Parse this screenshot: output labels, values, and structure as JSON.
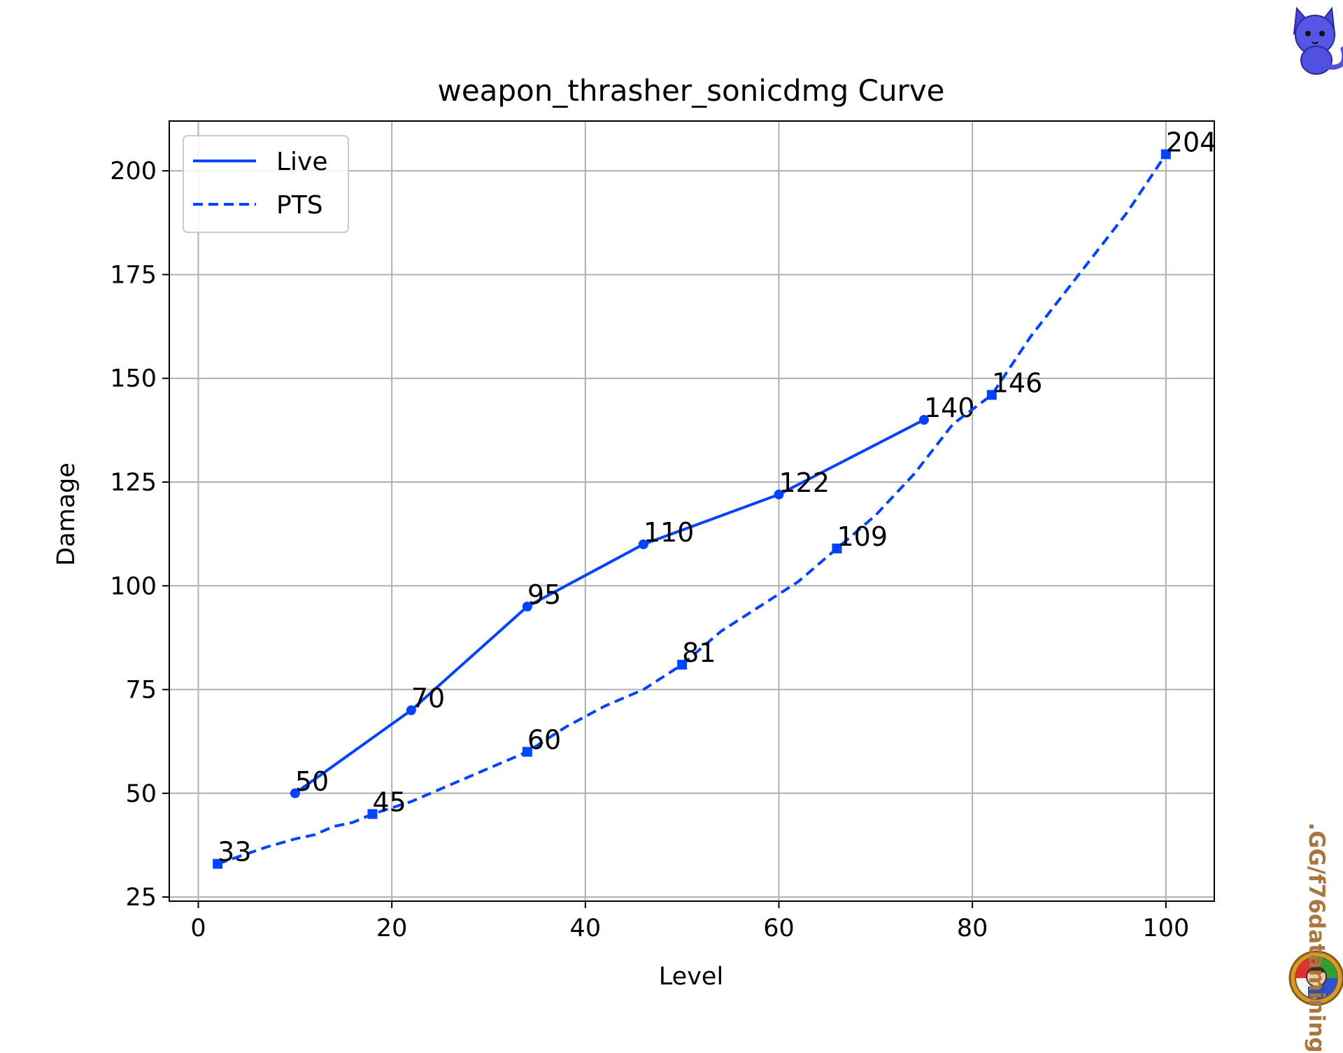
{
  "watermark": {
    "text": ".GG/f76datamining",
    "color": "#a8763e"
  },
  "logos": {
    "top_right": "cat-mascot-logo",
    "bottom_right": "vault-boy-gear-logo"
  },
  "chart_data": {
    "type": "line",
    "title": "weapon_thrasher_sonicdmg Curve",
    "xlabel": "Level",
    "ylabel": "Damage",
    "xlim": [
      -3,
      105
    ],
    "ylim": [
      24,
      212
    ],
    "xticks": [
      0,
      20,
      40,
      60,
      80,
      100
    ],
    "yticks": [
      25,
      50,
      75,
      100,
      125,
      150,
      175,
      200
    ],
    "grid": true,
    "legend_position": "upper-left",
    "color": "#0044ff",
    "series": [
      {
        "name": "Live",
        "style": "solid",
        "marker": "circle",
        "x": [
          10,
          22,
          34,
          46,
          60,
          75
        ],
        "y": [
          50,
          70,
          95,
          110,
          122,
          140
        ],
        "labels": [
          "50",
          "70",
          "95",
          "110",
          "122",
          "140"
        ]
      },
      {
        "name": "PTS",
        "style": "dashed",
        "marker": "square",
        "x": [
          2,
          7,
          10,
          12,
          14,
          16,
          18,
          22,
          26,
          30,
          34,
          38,
          42,
          46,
          50,
          54,
          58,
          62,
          66,
          70,
          74,
          78,
          82,
          86,
          90,
          92,
          96,
          100
        ],
        "y": [
          33,
          37,
          39,
          40,
          42,
          43,
          45,
          48,
          52,
          56,
          60,
          66,
          71,
          75,
          81,
          89,
          95,
          101,
          109,
          117,
          127,
          139,
          146,
          160,
          172,
          178,
          190,
          204
        ],
        "markers_x": [
          2,
          18,
          34,
          50,
          66,
          82,
          100
        ],
        "markers_y": [
          33,
          45,
          60,
          81,
          109,
          146,
          204
        ],
        "labels": [
          "33",
          "45",
          "60",
          "81",
          "109",
          "146",
          "204"
        ]
      }
    ]
  }
}
